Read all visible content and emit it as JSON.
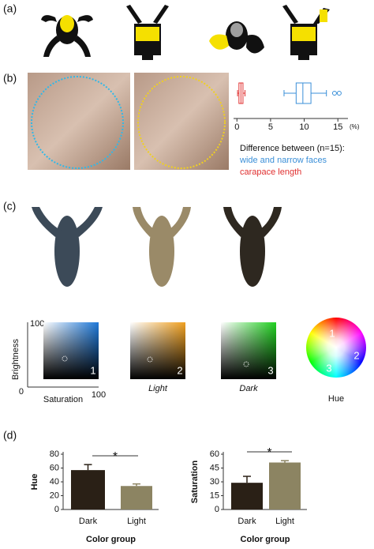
{
  "panels": {
    "a": "(a)",
    "b": "(b)",
    "c": "(c)",
    "d": "(d)"
  },
  "color_space": {
    "y_label": "Brightness",
    "x_label": "Saturation",
    "y_max": "100",
    "origin": "0",
    "x_max": "100",
    "squares": [
      {
        "number": "1"
      },
      {
        "number": "2",
        "label": "Light"
      },
      {
        "number": "3",
        "label": "Dark"
      }
    ],
    "hue_wheel": {
      "label": "Hue",
      "numbers": [
        "1",
        "2",
        "3"
      ]
    }
  },
  "chart_data": [
    {
      "type": "box",
      "legend_title": "Difference between (n=15):",
      "x_label": "(%)",
      "xlim": [
        -0.5,
        16.5
      ],
      "xticks": [
        0,
        5,
        10,
        15
      ],
      "series": [
        {
          "name": "wide and narrow faces",
          "color": "#3a8fd8",
          "min": 7,
          "q1": 8.8,
          "median": 9.8,
          "q3": 11,
          "max": 13.3,
          "outliers": [
            14.5,
            15.2
          ]
        },
        {
          "name": "carapace length",
          "color": "#e03030",
          "min": 0.1,
          "q1": 0.3,
          "median": 0.6,
          "q3": 0.9,
          "max": 1.2,
          "outliers": []
        }
      ]
    },
    {
      "type": "bar",
      "y_label": "Hue",
      "x_label": "Color group",
      "categories": [
        "Dark",
        "Light"
      ],
      "values": [
        57,
        34
      ],
      "errors": [
        8,
        3
      ],
      "colors": [
        "#2a2016",
        "#8c8462"
      ],
      "ylim": [
        0,
        80
      ],
      "yticks": [
        0,
        20,
        40,
        60,
        80
      ],
      "annotation": "*"
    },
    {
      "type": "bar",
      "y_label": "Saturation",
      "x_label": "Color group",
      "categories": [
        "Dark",
        "Light"
      ],
      "values": [
        29,
        51
      ],
      "errors": [
        7,
        2
      ],
      "colors": [
        "#2a2016",
        "#8c8462"
      ],
      "ylim": [
        0,
        60
      ],
      "yticks": [
        0,
        15,
        30,
        45,
        60
      ],
      "annotation": "*"
    }
  ]
}
